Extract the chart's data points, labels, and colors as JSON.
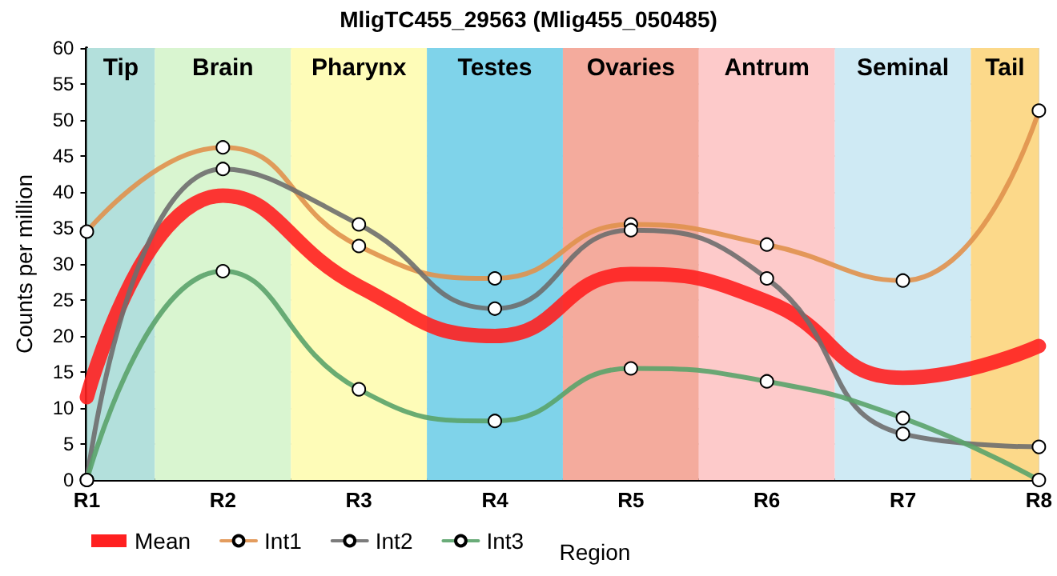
{
  "chart_data": {
    "type": "line",
    "title": "MligTC455_29563 (Mlig455_050485)",
    "xlabel": "Region",
    "ylabel": "Counts per million",
    "categories": [
      "R1",
      "R2",
      "R3",
      "R4",
      "R5",
      "R6",
      "R7",
      "R8"
    ],
    "ylim": [
      0,
      60
    ],
    "yticks": [
      0,
      5,
      10,
      15,
      20,
      25,
      30,
      35,
      40,
      45,
      50,
      55,
      60
    ],
    "series": [
      {
        "name": "Mean",
        "color": "#ff2020",
        "marker": "none",
        "values": [
          11.5,
          39.5,
          26.9,
          20,
          28.6,
          24.8,
          14.2,
          18.6
        ]
      },
      {
        "name": "Int1",
        "color": "#e0914c",
        "marker": "circle",
        "values": [
          34.5,
          46.2,
          32.5,
          28,
          35.5,
          32.7,
          27.7,
          51.3
        ]
      },
      {
        "name": "Int2",
        "color": "#6e6e6e",
        "marker": "circle",
        "values": [
          0,
          43.2,
          35.5,
          23.8,
          34.7,
          28,
          6.4,
          4.6
        ]
      },
      {
        "name": "Int3",
        "color": "#5aa36a",
        "marker": "circle",
        "values": [
          0,
          29,
          12.6,
          8.2,
          15.5,
          13.7,
          8.6,
          0
        ]
      }
    ],
    "bands": [
      {
        "axis": "x",
        "from": "R1",
        "to": "R1",
        "label": "Tip",
        "color": "#b3e0dc"
      },
      {
        "axis": "x",
        "from": "R2",
        "to": "R2",
        "label": "Brain",
        "color": "#d9f5d0"
      },
      {
        "axis": "x",
        "from": "R3",
        "to": "R3",
        "label": "Pharynx",
        "color": "#fefcb8"
      },
      {
        "axis": "x",
        "from": "R4",
        "to": "R4",
        "label": "Testes",
        "color": "#7fd3ea"
      },
      {
        "axis": "x",
        "from": "R5",
        "to": "R5",
        "label": "Ovaries",
        "color": "#f4ab9d"
      },
      {
        "axis": "x",
        "from": "R6",
        "to": "R6",
        "label": "Antrum",
        "color": "#fdcaca"
      },
      {
        "axis": "x",
        "from": "R7",
        "to": "R7",
        "label": "Seminal",
        "color": "#cfeaf4"
      },
      {
        "axis": "x",
        "from": "R8",
        "to": "R8",
        "label": "Tail",
        "color": "#fcd98a"
      }
    ],
    "grid": true,
    "legend": "bottom left",
    "line_style": "solid"
  }
}
